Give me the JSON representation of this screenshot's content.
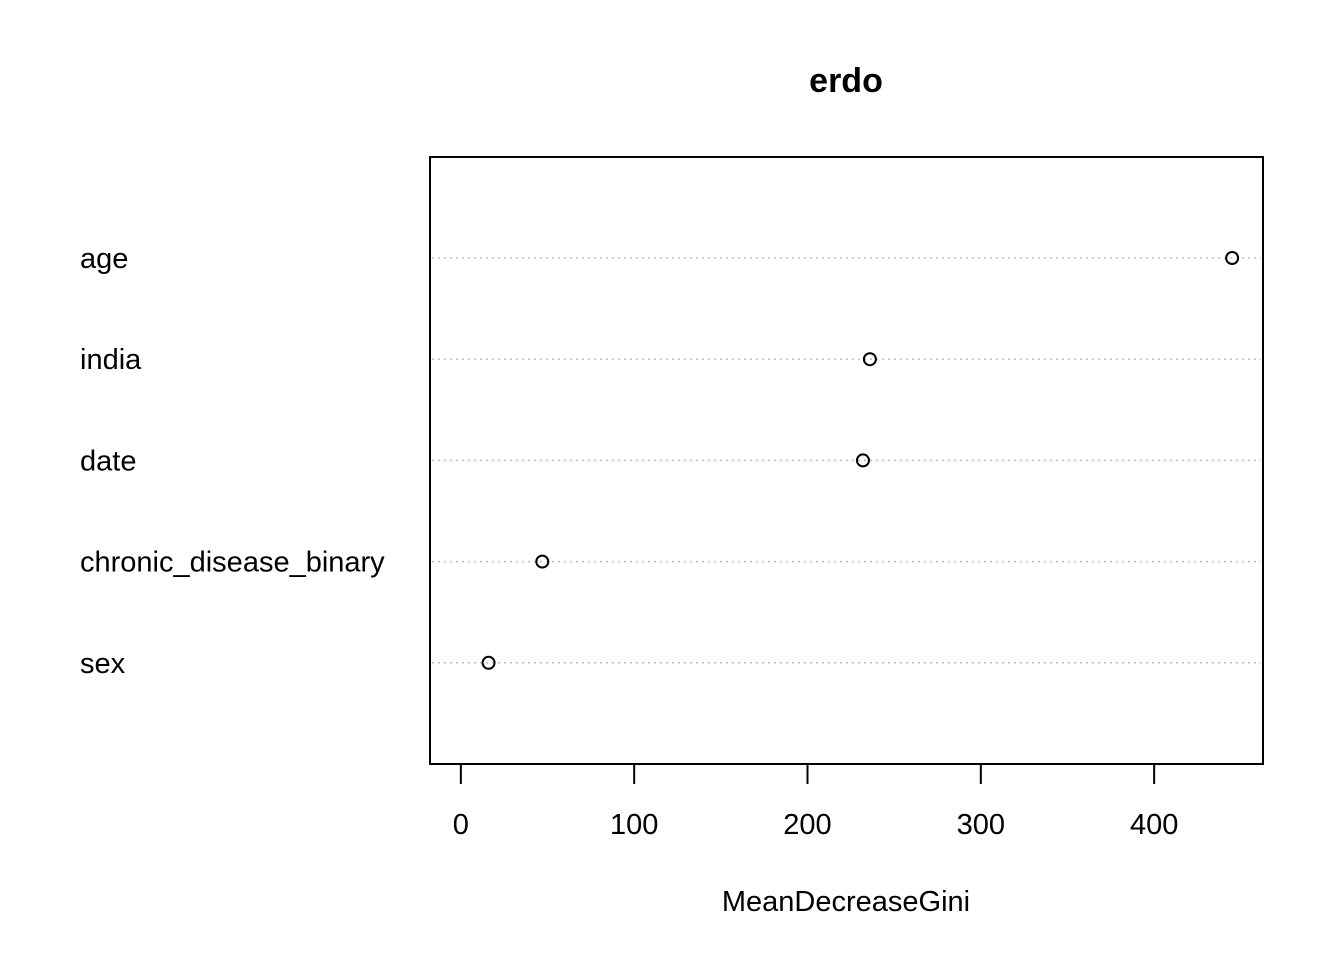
{
  "chart_data": {
    "type": "scatter",
    "title": "erdo",
    "xlabel": "MeanDecreaseGini",
    "ylabel": "",
    "categories": [
      "age",
      "india",
      "date",
      "chronic_disease_binary",
      "sex"
    ],
    "values": [
      445,
      236,
      232,
      47,
      16
    ],
    "x_ticks": [
      "0",
      "100",
      "200",
      "300",
      "400"
    ],
    "xlim": [
      -17.8,
      462.8
    ],
    "grid": "dotted horizontal per category",
    "marker": "open circle"
  }
}
